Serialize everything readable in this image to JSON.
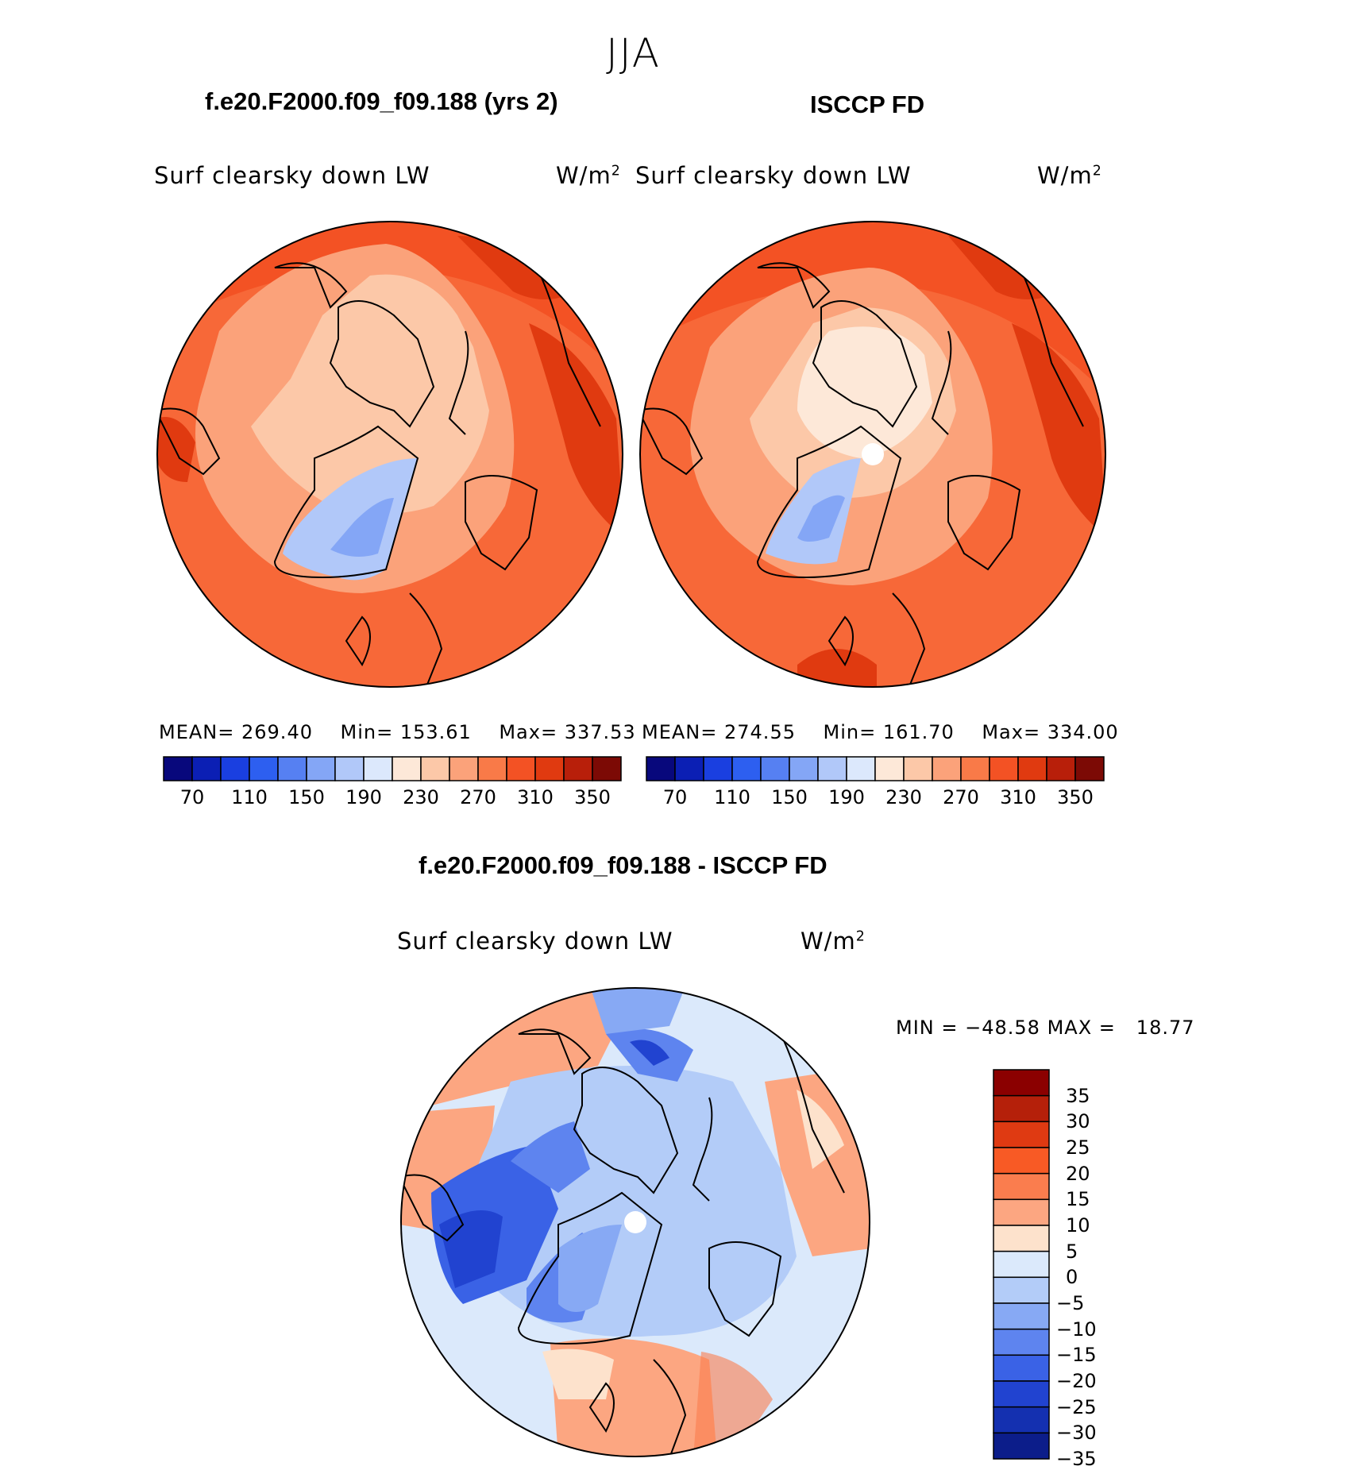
{
  "season": "JJA",
  "panels": [
    {
      "title": "f.e20.F2000.f09_f09.188 (yrs 2)",
      "variable": "Surf clearsky down LW",
      "units_base": "W/m",
      "units_exp": "2",
      "stats": {
        "mean_label": "MEAN=",
        "mean": "269.40",
        "min_label": "Min=",
        "min": "153.61",
        "max_label": "Max=",
        "max": "337.53"
      },
      "pole_missing": false
    },
    {
      "title": "ISCCP FD",
      "variable": "Surf clearsky down LW",
      "units_base": "W/m",
      "units_exp": "2",
      "stats": {
        "mean_label": "MEAN=",
        "mean": "274.55",
        "min_label": "Min=",
        "min": "161.70",
        "max_label": "Max=",
        "max": "334.00"
      },
      "pole_missing": true
    }
  ],
  "abs_colorbar": {
    "colors": [
      "#08087c",
      "#0b1fb4",
      "#1a3fe0",
      "#2d5ff0",
      "#5680f2",
      "#84a6f6",
      "#b1c8f9",
      "#dce8fc",
      "#fde8d8",
      "#fcc8a8",
      "#fba27a",
      "#f97a48",
      "#f35224",
      "#e03a10",
      "#b81f0a",
      "#7c0a05"
    ],
    "ticks": [
      "70",
      "110",
      "150",
      "190",
      "230",
      "270",
      "310",
      "350"
    ]
  },
  "diff_panel": {
    "title": "f.e20.F2000.f09_f09.188 - ISCCP FD",
    "variable": "Surf clearsky down LW",
    "units_base": "W/m",
    "units_exp": "2",
    "min_label": "MIN =",
    "min": "−48.58",
    "max_label": "MAX =",
    "max": "18.77",
    "colors": [
      "#8b0000",
      "#b5200a",
      "#df3a12",
      "#f85a25",
      "#fa7d4e",
      "#fca681",
      "#fde2cc",
      "#dbe9fb",
      "#b3ccf8",
      "#87a9f4",
      "#5e84ef",
      "#3a62e6",
      "#2143d0",
      "#1430b0",
      "#0c1d8a"
    ],
    "ticks": [
      "35",
      "30",
      "25",
      "20",
      "15",
      "10",
      "5",
      "0",
      "−5",
      "−10",
      "−15",
      "−20",
      "−25",
      "−30",
      "−35"
    ]
  }
}
